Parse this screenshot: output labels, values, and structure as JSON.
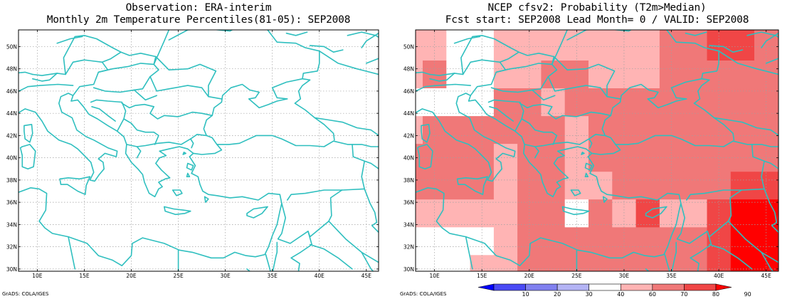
{
  "left_panel": {
    "title_line1": "Observation: ERA-interim",
    "title_line2": "Monthly 2m Temperature Percentiles(81-05): SEP2008",
    "credit": "GrADS: COLA/IGES"
  },
  "right_panel": {
    "title_line1": "NCEP cfsv2: Probability (T2m>Median)",
    "title_line2": "Fcst start: SEP2008  Lead Month= 0 / VALID: SEP2008",
    "credit": "GrADS: COLA/IGES"
  },
  "axes": {
    "lon_ticks": [
      {
        "value": 10,
        "label": "10E"
      },
      {
        "value": 15,
        "label": "15E"
      },
      {
        "value": 20,
        "label": "20E"
      },
      {
        "value": 25,
        "label": "25E"
      },
      {
        "value": 30,
        "label": "30E"
      },
      {
        "value": 35,
        "label": "35E"
      },
      {
        "value": 40,
        "label": "40E"
      },
      {
        "value": 45,
        "label": "45E"
      }
    ],
    "lat_ticks": [
      {
        "value": 30,
        "label": "30N"
      },
      {
        "value": 32,
        "label": "32N"
      },
      {
        "value": 34,
        "label": "34N"
      },
      {
        "value": 36,
        "label": "36N"
      },
      {
        "value": 38,
        "label": "38N"
      },
      {
        "value": 40,
        "label": "40N"
      },
      {
        "value": 42,
        "label": "42N"
      },
      {
        "value": 44,
        "label": "44N"
      },
      {
        "value": 46,
        "label": "46N"
      },
      {
        "value": 48,
        "label": "48N"
      },
      {
        "value": 50,
        "label": "50N"
      }
    ],
    "lon_range": [
      8,
      46.3
    ],
    "lat_range": [
      29.8,
      51.5
    ],
    "grid": true
  },
  "colorbar": {
    "labels": [
      "10",
      "20",
      "30",
      "40",
      "60",
      "70",
      "80",
      "90"
    ],
    "colors": [
      "#0000ff",
      "#4a4af5",
      "#8080f0",
      "#b4b4f5",
      "#ffffff",
      "#ffb4b4",
      "#f07878",
      "#f04646",
      "#ff0000"
    ]
  },
  "colors": {
    "coastline": "#2fbfbf",
    "grid": "#a0a0a0"
  }
}
